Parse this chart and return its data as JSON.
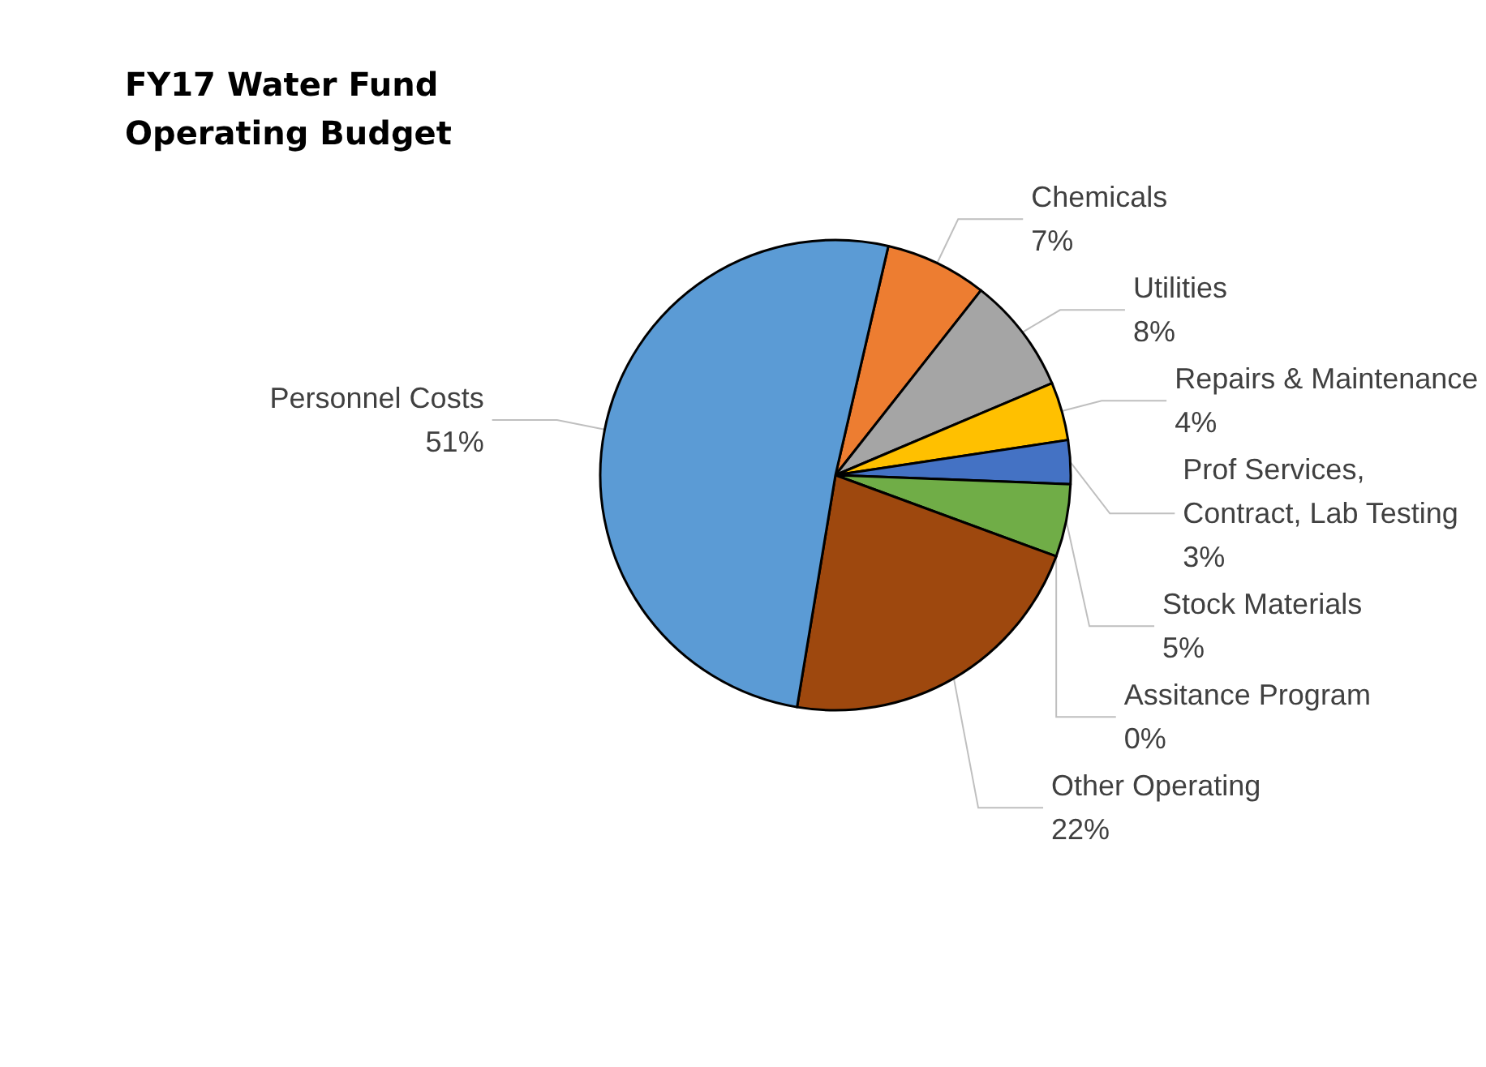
{
  "chart_data": {
    "type": "pie",
    "title": "FY17 Water Fund Operating Budget",
    "categories": [
      "Chemicals",
      "Utilities",
      "Repairs & Maintenance",
      "Prof Services, Contract, Lab Testing",
      "Stock Materials",
      "Assitance Program",
      "Other Operating",
      "Personnel Costs"
    ],
    "values": [
      7,
      8,
      4,
      3,
      5,
      0,
      22,
      51
    ],
    "value_labels": [
      "7%",
      "8%",
      "4%",
      "3%",
      "5%",
      "0%",
      "22%",
      "51%"
    ],
    "colors": [
      "#ed7d31",
      "#a5a5a5",
      "#ffc000",
      "#4472c4",
      "#70ad47",
      "#264478",
      "#9e480e",
      "#5b9bd5"
    ],
    "legend": false
  }
}
